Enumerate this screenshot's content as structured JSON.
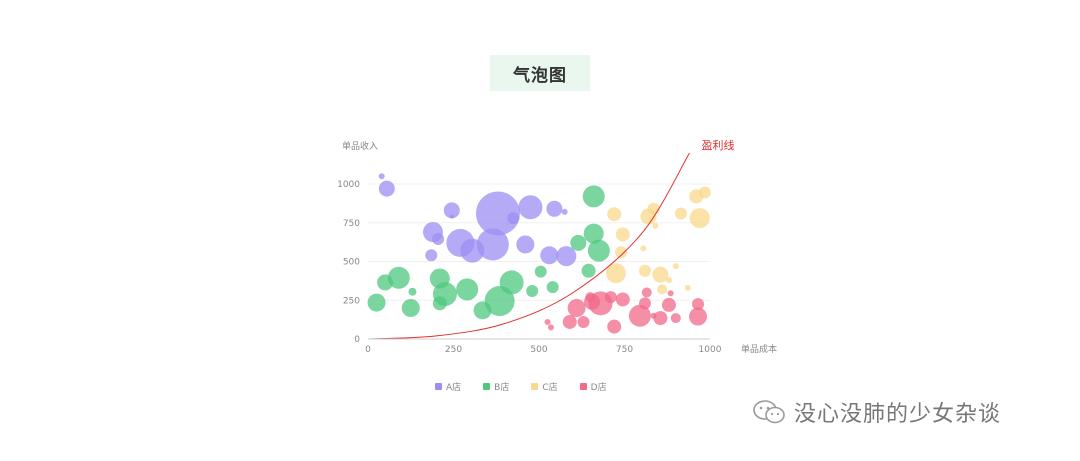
{
  "title": "气泡图",
  "chart_data": {
    "type": "scatter",
    "subtype": "bubble",
    "xlabel": "单品成本",
    "ylabel": "单品收入",
    "xlim": [
      0,
      1000
    ],
    "ylim": [
      0,
      1000
    ],
    "x_ticks": [
      "0",
      "250",
      "500",
      "750",
      "1000"
    ],
    "y_ticks": [
      "0",
      "250",
      "500",
      "750",
      "1000"
    ],
    "grid": "horizontal",
    "legend_position": "bottom",
    "curve_label": "盈利线",
    "curve_color": "#e0302e",
    "curve": [
      [
        0,
        0
      ],
      [
        200,
        20
      ],
      [
        400,
        100
      ],
      [
        600,
        300
      ],
      [
        800,
        680
      ],
      [
        940,
        1200
      ]
    ],
    "series": [
      {
        "name": "A店",
        "color": "#9c8ef2",
        "points": [
          [
            40,
            1050,
            3
          ],
          [
            55,
            970,
            8
          ],
          [
            245,
            830,
            8
          ],
          [
            245,
            790,
            2
          ],
          [
            190,
            690,
            10
          ],
          [
            205,
            645,
            6
          ],
          [
            270,
            620,
            14
          ],
          [
            185,
            540,
            6
          ],
          [
            305,
            570,
            12
          ],
          [
            380,
            810,
            22
          ],
          [
            365,
            610,
            16
          ],
          [
            425,
            780,
            6
          ],
          [
            475,
            850,
            12
          ],
          [
            460,
            610,
            9
          ],
          [
            545,
            840,
            8
          ],
          [
            575,
            820,
            3
          ],
          [
            530,
            540,
            9
          ],
          [
            580,
            535,
            10
          ]
        ]
      },
      {
        "name": "B店",
        "color": "#4fc77d",
        "points": [
          [
            25,
            235,
            9
          ],
          [
            50,
            365,
            8
          ],
          [
            90,
            395,
            11
          ],
          [
            130,
            305,
            4
          ],
          [
            125,
            200,
            9
          ],
          [
            210,
            390,
            10
          ],
          [
            210,
            230,
            7
          ],
          [
            225,
            290,
            12
          ],
          [
            290,
            320,
            11
          ],
          [
            335,
            185,
            9
          ],
          [
            385,
            245,
            15
          ],
          [
            420,
            365,
            12
          ],
          [
            480,
            310,
            6
          ],
          [
            505,
            435,
            6
          ],
          [
            540,
            335,
            6
          ],
          [
            615,
            620,
            8
          ],
          [
            660,
            920,
            11
          ],
          [
            660,
            680,
            10
          ],
          [
            675,
            570,
            11
          ],
          [
            645,
            440,
            7
          ]
        ]
      },
      {
        "name": "C店",
        "color": "#f8d88b",
        "points": [
          [
            720,
            805,
            7
          ],
          [
            745,
            675,
            7
          ],
          [
            740,
            560,
            6
          ],
          [
            725,
            425,
            10
          ],
          [
            805,
            585,
            3
          ],
          [
            810,
            440,
            6
          ],
          [
            820,
            790,
            8
          ],
          [
            835,
            840,
            6
          ],
          [
            840,
            730,
            3
          ],
          [
            855,
            415,
            8
          ],
          [
            860,
            320,
            5
          ],
          [
            880,
            380,
            3
          ],
          [
            900,
            470,
            3
          ],
          [
            915,
            810,
            6
          ],
          [
            935,
            330,
            3
          ],
          [
            960,
            920,
            7
          ],
          [
            970,
            780,
            10
          ],
          [
            985,
            945,
            6
          ]
        ]
      },
      {
        "name": "D店",
        "color": "#f06a8a",
        "points": [
          [
            525,
            110,
            3
          ],
          [
            535,
            75,
            3
          ],
          [
            590,
            110,
            7
          ],
          [
            610,
            200,
            9
          ],
          [
            630,
            110,
            6
          ],
          [
            650,
            270,
            5
          ],
          [
            655,
            240,
            8
          ],
          [
            680,
            230,
            12
          ],
          [
            710,
            270,
            6
          ],
          [
            720,
            80,
            7
          ],
          [
            745,
            255,
            7
          ],
          [
            795,
            150,
            11
          ],
          [
            810,
            230,
            6
          ],
          [
            815,
            300,
            5
          ],
          [
            835,
            150,
            3
          ],
          [
            855,
            135,
            7
          ],
          [
            880,
            220,
            7
          ],
          [
            885,
            295,
            3
          ],
          [
            900,
            135,
            5
          ],
          [
            965,
            225,
            6
          ],
          [
            965,
            145,
            9
          ]
        ]
      }
    ]
  },
  "watermark": {
    "text": "没心没肺的少女杂谈",
    "icon": "wechat-icon"
  }
}
